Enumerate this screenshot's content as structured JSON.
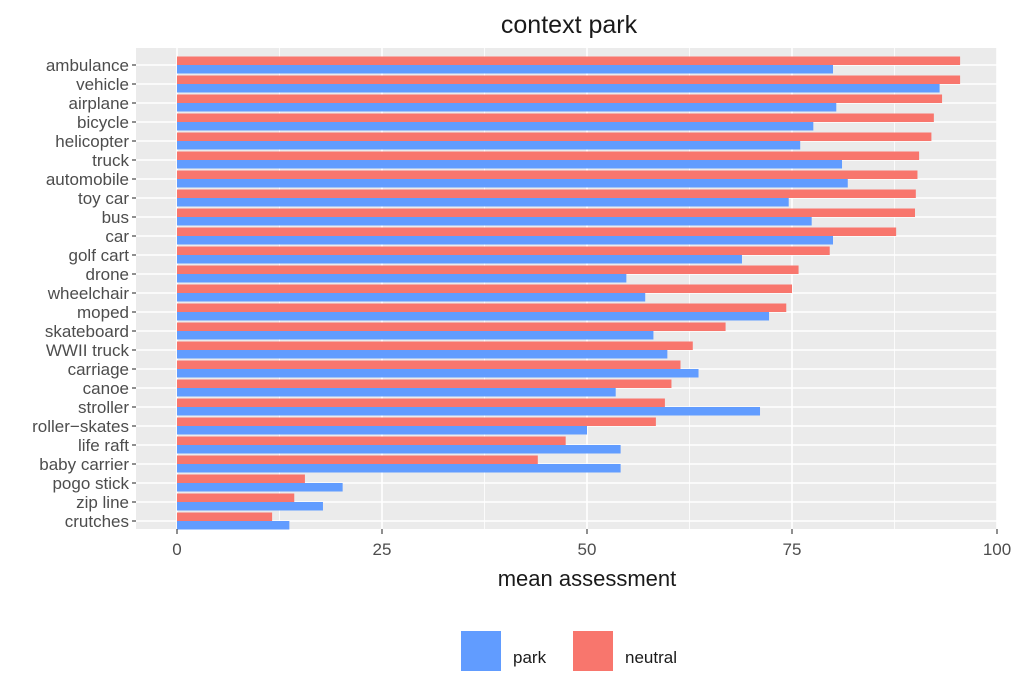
{
  "chart_data": {
    "type": "bar",
    "orientation": "horizontal",
    "title": "context park",
    "xlabel": "mean assessment",
    "ylabel": "",
    "xlim": [
      0,
      100
    ],
    "x_ticks": [
      0,
      25,
      50,
      75,
      100
    ],
    "x_tick_labels": [
      "0",
      "25",
      "50",
      "75",
      "100"
    ],
    "categories": [
      "ambulance",
      "vehicle",
      "airplane",
      "bicycle",
      "helicopter",
      "truck",
      "automobile",
      "toy car",
      "bus",
      "car",
      "golf cart",
      "drone",
      "wheelchair",
      "moped",
      "skateboard",
      "WWII truck",
      "carriage",
      "canoe",
      "stroller",
      "roller−skates",
      "life raft",
      "baby carrier",
      "pogo stick",
      "zip line",
      "crutches"
    ],
    "series": [
      {
        "name": "neutral",
        "color": "#F8766D",
        "values": [
          95.5,
          95.5,
          93.3,
          92.3,
          92.0,
          90.5,
          90.3,
          90.1,
          90.0,
          87.7,
          79.6,
          75.8,
          75.0,
          74.3,
          66.9,
          62.9,
          61.4,
          60.3,
          59.5,
          58.4,
          47.4,
          44.0,
          15.6,
          14.3,
          11.6
        ]
      },
      {
        "name": "park",
        "color": "#619CFF",
        "values": [
          80.0,
          93.0,
          80.4,
          77.6,
          76.0,
          81.1,
          81.8,
          74.6,
          77.4,
          80.0,
          68.9,
          54.8,
          57.1,
          72.2,
          58.1,
          59.8,
          63.6,
          53.5,
          71.1,
          50.0,
          54.1,
          54.1,
          20.2,
          17.8,
          13.7
        ]
      }
    ],
    "legend": {
      "position": "bottom",
      "order": [
        "park",
        "neutral"
      ]
    },
    "grid": true,
    "panel_background": "#EBEBEB"
  }
}
